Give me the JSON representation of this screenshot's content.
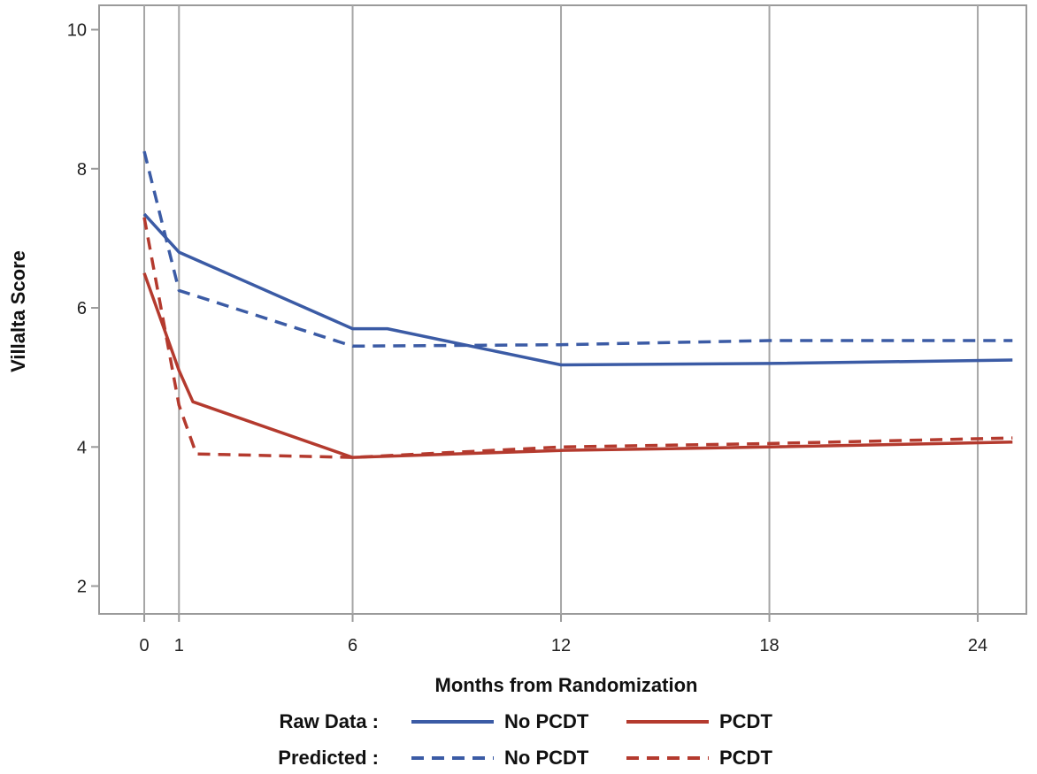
{
  "chart_data": {
    "type": "line",
    "xlabel": "Months from Randomization",
    "ylabel": "Villalta Score",
    "xlim": [
      -1.3,
      25.4
    ],
    "ylim": [
      1.6,
      10.35
    ],
    "xticks": [
      0,
      1,
      6,
      12,
      18,
      24
    ],
    "yticks": [
      2,
      4,
      6,
      8,
      10
    ],
    "vertical_gridlines": [
      0,
      1,
      6,
      12,
      18,
      24
    ],
    "colors": {
      "blue": "#3B5BA5",
      "red": "#B43A2E"
    },
    "series": [
      {
        "name": "No PCDT",
        "group": "Raw Data",
        "color": "blue",
        "dash": "solid",
        "points": [
          [
            0,
            7.35
          ],
          [
            1,
            6.8
          ],
          [
            6,
            5.7
          ],
          [
            7,
            5.7
          ],
          [
            12,
            5.18
          ],
          [
            18,
            5.2
          ],
          [
            25,
            5.25
          ]
        ]
      },
      {
        "name": "PCDT",
        "group": "Raw Data",
        "color": "red",
        "dash": "solid",
        "points": [
          [
            0,
            6.5
          ],
          [
            1,
            5.1
          ],
          [
            1.4,
            4.65
          ],
          [
            6,
            3.85
          ],
          [
            12,
            3.95
          ],
          [
            18,
            4.0
          ],
          [
            25,
            4.07
          ]
        ]
      },
      {
        "name": "No PCDT",
        "group": "Predicted",
        "color": "blue",
        "dash": "dashed",
        "points": [
          [
            0,
            8.25
          ],
          [
            1,
            6.25
          ],
          [
            6,
            5.45
          ],
          [
            12,
            5.47
          ],
          [
            18,
            5.53
          ],
          [
            25,
            5.53
          ]
        ]
      },
      {
        "name": "PCDT",
        "group": "Predicted",
        "color": "red",
        "dash": "dashed",
        "points": [
          [
            0,
            7.3
          ],
          [
            1,
            4.6
          ],
          [
            1.5,
            3.9
          ],
          [
            6,
            3.85
          ],
          [
            12,
            4.0
          ],
          [
            18,
            4.05
          ],
          [
            25,
            4.13
          ]
        ]
      }
    ]
  },
  "legend": {
    "raw_label": "Raw Data :",
    "predicted_label": "Predicted :",
    "no_pcdt": "No PCDT",
    "pcdt": "PCDT"
  }
}
